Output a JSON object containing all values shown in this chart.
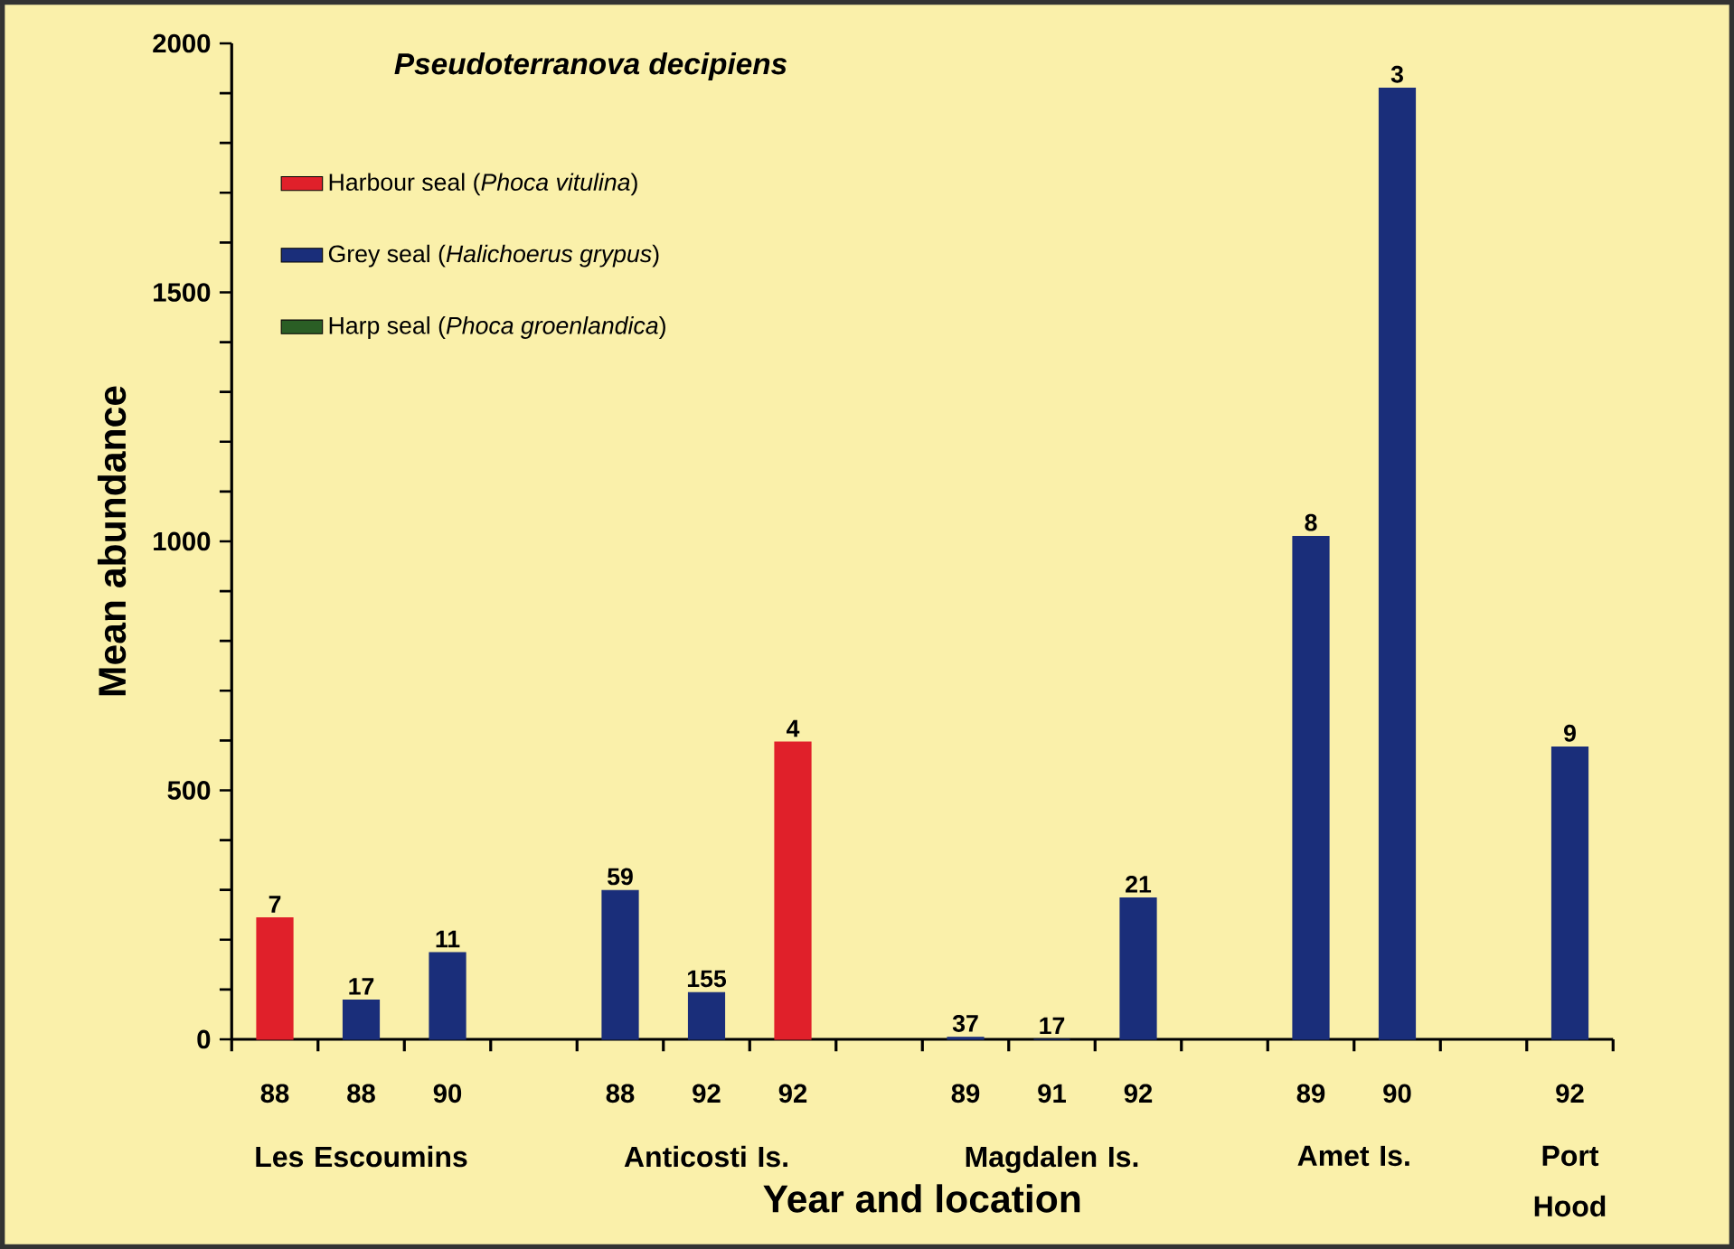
{
  "chart_data": {
    "type": "bar",
    "title": "Pseudoterranova decipiens",
    "xlabel": "Year and location",
    "ylabel": "Mean abundance",
    "categories": [
      "88",
      "88",
      "90",
      null,
      "88",
      "92",
      "92",
      null,
      "89",
      "91",
      "92",
      null,
      "89",
      "90",
      null,
      "92"
    ],
    "series": [
      {
        "name": "Harbour seal (*Phoca vitulina*)",
        "color": "#e0202a",
        "values": [
          244,
          null,
          null,
          null,
          null,
          null,
          597,
          null,
          null,
          null,
          null,
          null,
          null,
          null,
          null,
          null
        ]
      },
      {
        "name": "Grey seal (*Halichoerus grypus*)",
        "color": "#1a2e7a",
        "values": [
          null,
          79,
          174,
          null,
          299,
          94,
          null,
          null,
          4,
          0,
          284,
          null,
          1010,
          1910,
          null,
          587
        ]
      },
      {
        "name": "Harp seal (*Phoca groenlandica*)",
        "color": "#2a5e25",
        "values": [
          null,
          null,
          null,
          null,
          null,
          null,
          null,
          null,
          null,
          null,
          null,
          null,
          null,
          null,
          null,
          null
        ]
      }
    ],
    "annotations": [
      "Les Escoumins",
      "Anticosti Is.",
      "Magdalen Is.",
      "Amet Is.",
      "Port Hood",
      "7",
      "17",
      "11",
      "59",
      "155",
      "4",
      "37",
      "17",
      "21",
      "8",
      "3",
      "9"
    ],
    "ylim": [
      0,
      2000
    ],
    "yticks": [
      0,
      500,
      1000,
      1500,
      2000
    ],
    "legend": "top left",
    "grid": false
  }
}
